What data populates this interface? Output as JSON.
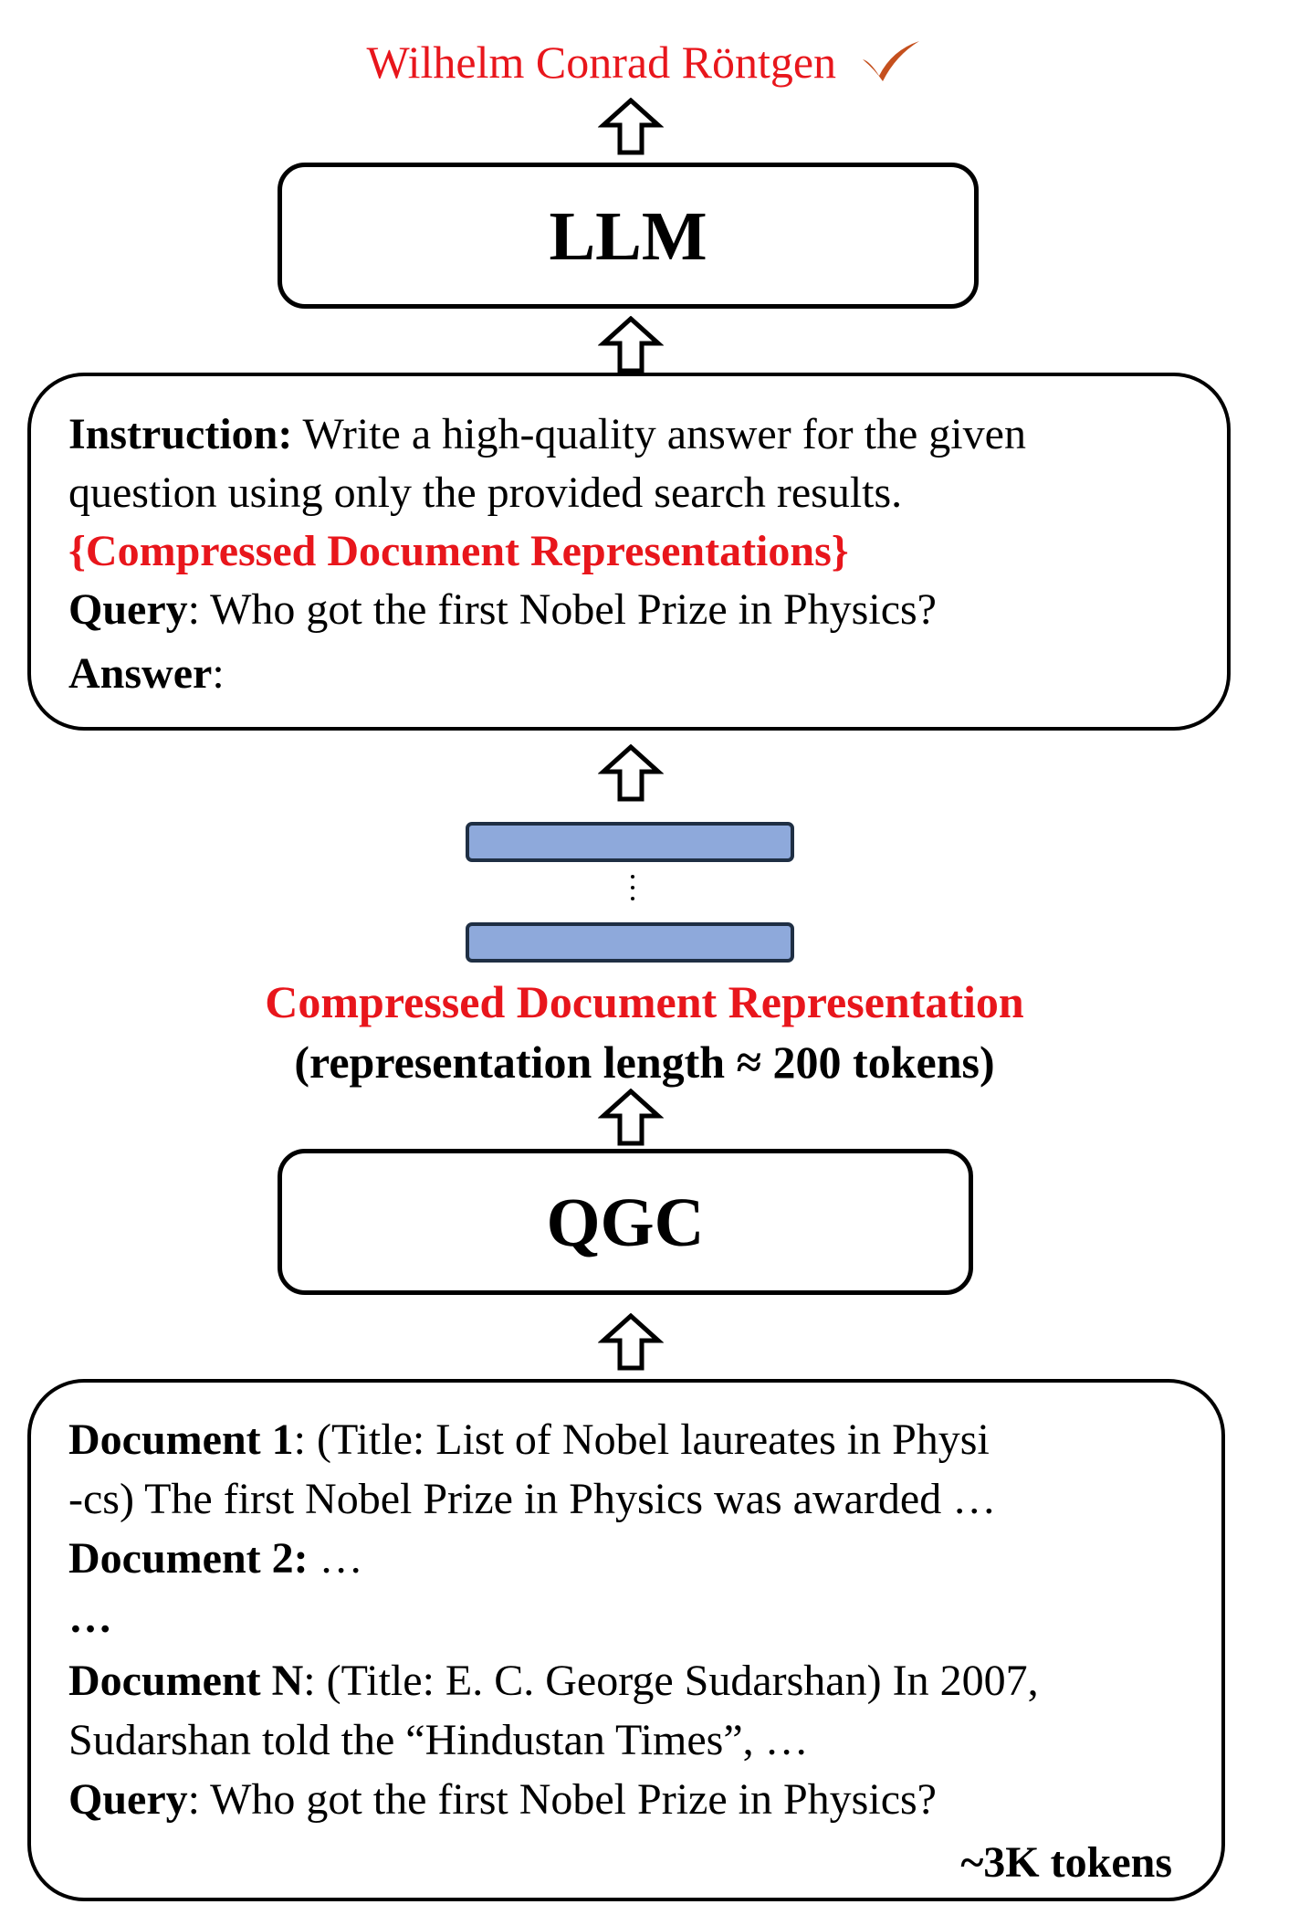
{
  "answer": {
    "text": "Wilhelm Conrad Röntgen",
    "icon": "checkmark-icon",
    "color": "#e8161c"
  },
  "llm_box": {
    "title": "LLM"
  },
  "prompt_box": {
    "instruction_label": "Instruction:",
    "instruction_text_1": " Write a high-quality answer for the given",
    "instruction_text_2": "question using only the provided search results.",
    "compressed_placeholder": "{Compressed Document Representations}",
    "query_label": "Query",
    "query_text": ": Who got the first Nobel Prize in Physics?",
    "answer_label": "Answer",
    "answer_colon": ":"
  },
  "representation": {
    "title": "Compressed Document Representation",
    "subtitle": "(representation length ≈ 200 tokens)",
    "vector_color": "#8ea9db"
  },
  "qgc_box": {
    "title": "QGC"
  },
  "documents_box": {
    "doc1_label": "Document 1",
    "doc1_text_1": ": (Title: List of Nobel laureates in Physi",
    "doc1_text_2": "-cs) The first Nobel Prize in Physics was awarded …",
    "doc2_label": "Document 2:",
    "doc2_text": " …",
    "ellipsis": "…",
    "docN_label": "Document N",
    "docN_text_1": ": (Title: E. C. George Sudarshan) In 2007,",
    "docN_text_2": "Sudarshan told the “Hindustan Times”, …",
    "query_label": "Query",
    "query_text": ": Who got the first Nobel Prize in Physics?",
    "token_count": "~3K tokens"
  }
}
